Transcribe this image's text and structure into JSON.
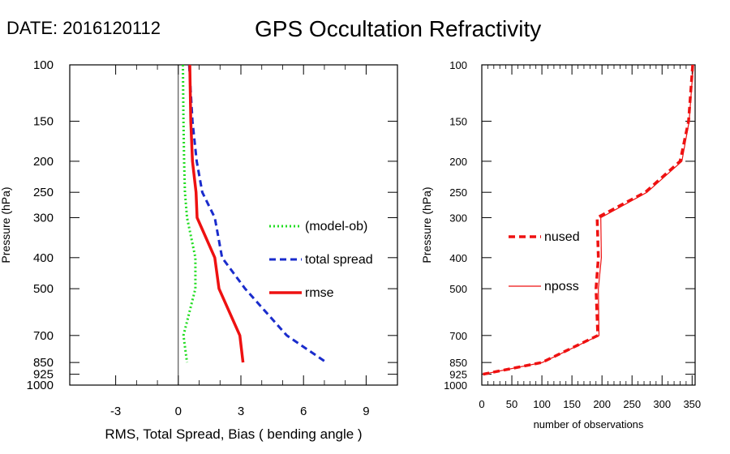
{
  "header": {
    "date_label": "DATE: 2016120112",
    "title": "GPS Occultation Refractivity"
  },
  "chart_data": [
    {
      "type": "line",
      "xlabel": "RMS, Total Spread, Bias ( bending angle )",
      "ylabel": "Pressure (hPa)",
      "y_scale": "log",
      "y_reversed": true,
      "xlim": [
        -5.2,
        10.5
      ],
      "ylim": [
        100,
        1000
      ],
      "xticks": [
        -3,
        0,
        3,
        6,
        9
      ],
      "yticks": [
        100,
        150,
        200,
        250,
        300,
        400,
        500,
        700,
        850,
        925,
        1000
      ],
      "zero_line": true,
      "grid": false,
      "legend_placement": "right-middle",
      "series": [
        {
          "name": "(model-ob)",
          "color": "#22dd22",
          "dash": "dotted",
          "width": 3,
          "values": [
            {
              "y": 100,
              "x": 0.22
            },
            {
              "y": 150,
              "x": 0.25
            },
            {
              "y": 200,
              "x": 0.28
            },
            {
              "y": 250,
              "x": 0.32
            },
            {
              "y": 300,
              "x": 0.42
            },
            {
              "y": 400,
              "x": 0.82
            },
            {
              "y": 500,
              "x": 0.82
            },
            {
              "y": 700,
              "x": 0.25
            },
            {
              "y": 850,
              "x": 0.42
            }
          ]
        },
        {
          "name": "total spread",
          "color": "#1a2ccc",
          "dash": "dashed",
          "width": 3,
          "values": [
            {
              "y": 100,
              "x": 0.52
            },
            {
              "y": 150,
              "x": 0.68
            },
            {
              "y": 200,
              "x": 0.88
            },
            {
              "y": 250,
              "x": 1.15
            },
            {
              "y": 300,
              "x": 1.75
            },
            {
              "y": 400,
              "x": 2.1
            },
            {
              "y": 500,
              "x": 3.2
            },
            {
              "y": 700,
              "x": 5.2
            },
            {
              "y": 850,
              "x": 7.1
            }
          ]
        },
        {
          "name": "rmse",
          "color": "#ee1111",
          "dash": "solid",
          "width": 3.5,
          "values": [
            {
              "y": 100,
              "x": 0.55
            },
            {
              "y": 150,
              "x": 0.6
            },
            {
              "y": 200,
              "x": 0.68
            },
            {
              "y": 250,
              "x": 0.85
            },
            {
              "y": 300,
              "x": 0.9
            },
            {
              "y": 400,
              "x": 1.75
            },
            {
              "y": 500,
              "x": 1.95
            },
            {
              "y": 700,
              "x": 2.95
            },
            {
              "y": 850,
              "x": 3.1
            }
          ]
        }
      ]
    },
    {
      "type": "line",
      "xlabel": "number of observations",
      "ylabel": "Pressure (hPa)",
      "y_scale": "log",
      "y_reversed": true,
      "xlim": [
        0,
        355
      ],
      "ylim": [
        100,
        1000
      ],
      "xticks": [
        0,
        50,
        100,
        150,
        200,
        250,
        300,
        350
      ],
      "yticks": [
        100,
        150,
        200,
        250,
        300,
        400,
        500,
        700,
        850,
        925,
        1000
      ],
      "grid": false,
      "legend_placement": "left-middle",
      "series": [
        {
          "name": "nused",
          "color": "#ee1111",
          "dash": "dashed",
          "width": 3.5,
          "values": [
            {
              "y": 100,
              "x": 351
            },
            {
              "y": 150,
              "x": 344
            },
            {
              "y": 200,
              "x": 330
            },
            {
              "y": 250,
              "x": 272
            },
            {
              "y": 300,
              "x": 192
            },
            {
              "y": 400,
              "x": 194
            },
            {
              "y": 500,
              "x": 190
            },
            {
              "y": 700,
              "x": 193
            },
            {
              "y": 850,
              "x": 100
            },
            {
              "y": 925,
              "x": 2
            }
          ]
        },
        {
          "name": "nposs",
          "color": "#ee1111",
          "dash": "solid",
          "width": 1.2,
          "values": [
            {
              "y": 100,
              "x": 352
            },
            {
              "y": 150,
              "x": 345
            },
            {
              "y": 200,
              "x": 333
            },
            {
              "y": 250,
              "x": 275
            },
            {
              "y": 300,
              "x": 198
            },
            {
              "y": 400,
              "x": 199
            },
            {
              "y": 500,
              "x": 194
            },
            {
              "y": 700,
              "x": 195
            },
            {
              "y": 850,
              "x": 101
            },
            {
              "y": 925,
              "x": 2
            }
          ]
        }
      ]
    }
  ]
}
